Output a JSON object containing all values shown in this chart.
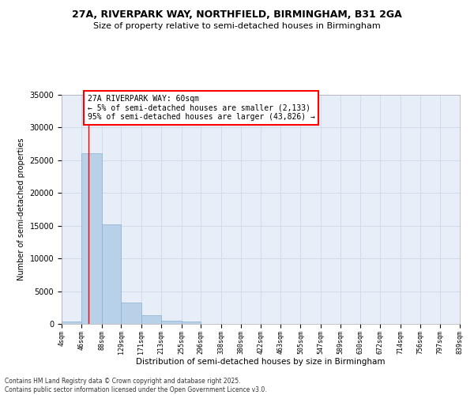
{
  "title_line1": "27A, RIVERPARK WAY, NORTHFIELD, BIRMINGHAM, B31 2GA",
  "title_line2": "Size of property relative to semi-detached houses in Birmingham",
  "xlabel": "Distribution of semi-detached houses by size in Birmingham",
  "ylabel": "Number of semi-detached properties",
  "bar_color": "#b8d0e8",
  "bar_edge_color": "#8ab0d0",
  "background_color": "#e8eef8",
  "grid_color": "#c8d4e8",
  "annotation_text": "27A RIVERPARK WAY: 60sqm\n← 5% of semi-detached houses are smaller (2,133)\n95% of semi-detached houses are larger (43,826) →",
  "annotation_box_color": "white",
  "annotation_box_edge": "red",
  "red_line_x": 60,
  "bins": [
    4,
    46,
    88,
    129,
    171,
    213,
    255,
    296,
    338,
    380,
    422,
    463,
    505,
    547,
    589,
    630,
    672,
    714,
    756,
    797,
    839
  ],
  "bar_heights": [
    400,
    26100,
    15200,
    3200,
    1300,
    500,
    350,
    0,
    0,
    0,
    0,
    0,
    0,
    0,
    0,
    0,
    0,
    0,
    0,
    0
  ],
  "ylim": [
    0,
    35000
  ],
  "yticks": [
    0,
    5000,
    10000,
    15000,
    20000,
    25000,
    30000,
    35000
  ],
  "footer_text": "Contains HM Land Registry data © Crown copyright and database right 2025.\nContains public sector information licensed under the Open Government Licence v3.0.",
  "tick_labels": [
    "4sqm",
    "46sqm",
    "88sqm",
    "129sqm",
    "171sqm",
    "213sqm",
    "255sqm",
    "296sqm",
    "338sqm",
    "380sqm",
    "422sqm",
    "463sqm",
    "505sqm",
    "547sqm",
    "589sqm",
    "630sqm",
    "672sqm",
    "714sqm",
    "756sqm",
    "797sqm",
    "839sqm"
  ]
}
